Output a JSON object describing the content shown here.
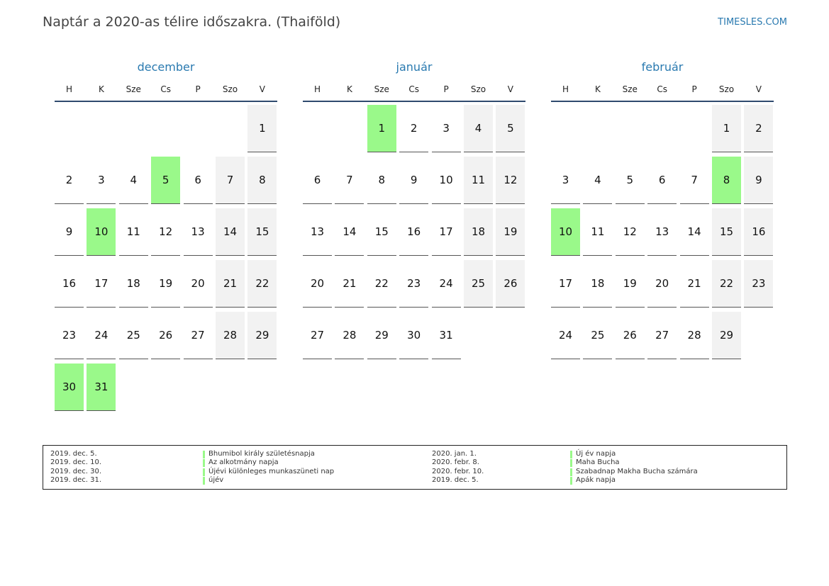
{
  "header": {
    "title": "Naptár a 2020-as télire időszakra. (Thaiföld)",
    "site": "TIMESLES.COM"
  },
  "weekdays": [
    "H",
    "K",
    "Sze",
    "Cs",
    "P",
    "Szo",
    "V"
  ],
  "months": [
    {
      "name": "december",
      "first_column": 6,
      "days": 31,
      "highlight": [
        5,
        10,
        30,
        31
      ]
    },
    {
      "name": "január",
      "first_column": 2,
      "days": 31,
      "highlight": [
        1
      ]
    },
    {
      "name": "február",
      "first_column": 5,
      "days": 29,
      "highlight": [
        8,
        10
      ]
    }
  ],
  "holidays": [
    {
      "date": "2019. dec. 5.",
      "name": "Bhumibol király születésnapja"
    },
    {
      "date": "2019. dec. 10.",
      "name": "Az alkotmány napja"
    },
    {
      "date": "2019. dec. 30.",
      "name": "Újévi különleges munkaszüneti nap"
    },
    {
      "date": "2019. dec. 31.",
      "name": "újév"
    },
    {
      "date": "2020. jan. 1.",
      "name": "Új év napja"
    },
    {
      "date": "2020. febr. 8.",
      "name": "Maha Bucha"
    },
    {
      "date": "2020. febr. 10.",
      "name": "Szabadnap Makha Bucha számára"
    },
    {
      "date": "2019. dec. 5.",
      "name": "Apák napja"
    }
  ]
}
